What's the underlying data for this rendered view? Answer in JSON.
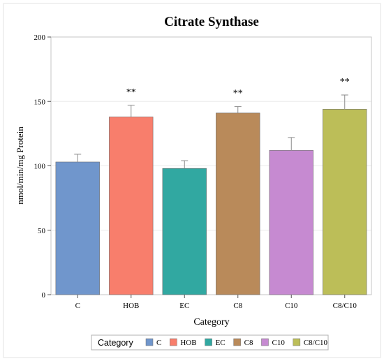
{
  "chart_data": {
    "type": "bar",
    "title": "Citrate Synthase",
    "xlabel": "Category",
    "ylabel": "nmol/min/mg Protein",
    "ylim": [
      0,
      200
    ],
    "yticks": [
      0,
      50,
      100,
      150,
      200
    ],
    "categories": [
      "C",
      "HOB",
      "EC",
      "C8",
      "C10",
      "C8/C10"
    ],
    "values": [
      103,
      138,
      98,
      141,
      112,
      144
    ],
    "errors": [
      6,
      9,
      6,
      5,
      10,
      11
    ],
    "significance": [
      "",
      "**",
      "",
      "**",
      "",
      "**"
    ],
    "colors": [
      "#7096cc",
      "#f87e6c",
      "#31a8a1",
      "#b98a5a",
      "#c68ad1",
      "#bcbe58"
    ],
    "legend": {
      "title": "Category",
      "position": "bottom",
      "entries": [
        "C",
        "HOB",
        "EC",
        "C8",
        "C10",
        "C8/C10"
      ]
    },
    "grid": true
  }
}
